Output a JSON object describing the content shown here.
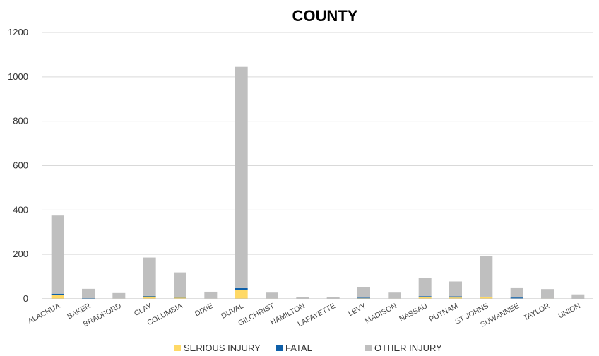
{
  "chart_data": {
    "type": "bar",
    "stacked": true,
    "title": "COUNTY",
    "xlabel": "",
    "ylabel": "",
    "ylim": [
      0,
      1200
    ],
    "yticks": [
      0,
      200,
      400,
      600,
      800,
      1000,
      1200
    ],
    "grid": true,
    "legend_position": "bottom",
    "categories": [
      "ALACHUA",
      "BAKER",
      "BRADFORD",
      "CLAY",
      "COLUMBIA",
      "DIXIE",
      "DUVAL",
      "GILCHRIST",
      "HAMILTON",
      "LAFAYETTE",
      "LEVY",
      "MADISON",
      "NASSAU",
      "PUTNAM",
      "ST JOHNS",
      "SUWANNEE",
      "TAYLOR",
      "UNION"
    ],
    "series": [
      {
        "name": "SERIOUS INJURY",
        "color": "#ffd966",
        "values": [
          17,
          2,
          2,
          11,
          6,
          2,
          39,
          2,
          0,
          0,
          4,
          2,
          7,
          6,
          9,
          2,
          2,
          1
        ]
      },
      {
        "name": "FATAL",
        "color": "#0e5fa8",
        "values": [
          6,
          1,
          0,
          2,
          2,
          0,
          9,
          0,
          0,
          0,
          1,
          0,
          5,
          5,
          1,
          4,
          0,
          0
        ]
      },
      {
        "name": "OTHER INJURY",
        "color": "#bfbfbf",
        "values": [
          352,
          42,
          24,
          173,
          111,
          30,
          997,
          26,
          7,
          7,
          46,
          26,
          81,
          67,
          184,
          42,
          42,
          19
        ]
      }
    ]
  }
}
